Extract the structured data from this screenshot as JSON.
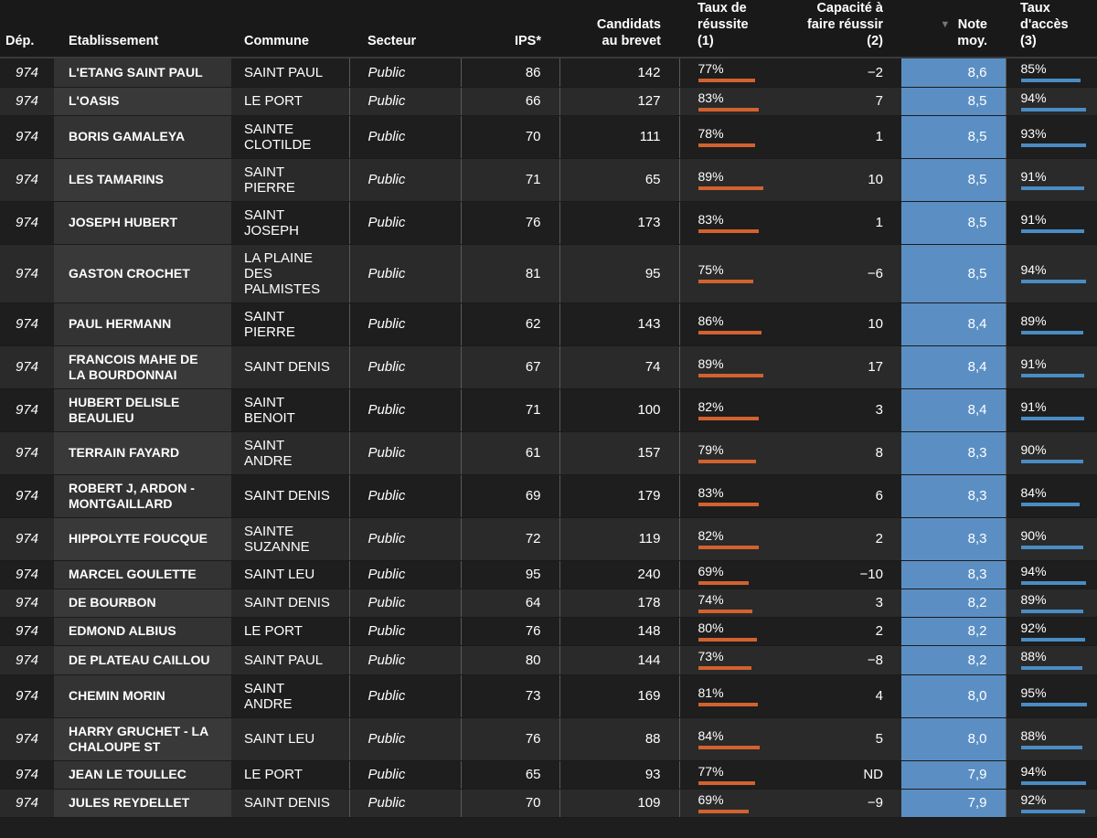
{
  "headers": {
    "dep": "Dép.",
    "etablissement": "Etablissement",
    "commune": "Commune",
    "secteur": "Secteur",
    "ips": "IPS*",
    "candidats_1": "Candidats",
    "candidats_2": "au brevet",
    "taux_1": "Taux de",
    "taux_2": "réussite",
    "taux_3": "(1)",
    "cap_1": "Capacité à",
    "cap_2": "faire réussir",
    "cap_3": "(2)",
    "note_1": "Note",
    "note_2": "moy.",
    "note_sort_icon": "▼",
    "acces_1": "Taux",
    "acces_2": "d'accès",
    "acces_3": "(3)"
  },
  "colors": {
    "success_bar": "#d2622f",
    "access_bar": "#4a8cc4",
    "note_column": "#5b8fc4"
  },
  "rows": [
    {
      "dep": "974",
      "etab": [
        "L'ETANG SAINT PAUL"
      ],
      "commune": [
        "SAINT PAUL"
      ],
      "secteur": "Public",
      "ips": "86",
      "cand": "142",
      "taux": "77%",
      "taux_v": 0.77,
      "cap": "−2",
      "note": "8,6",
      "acces": "85%",
      "acces_v": 0.85
    },
    {
      "dep": "974",
      "etab": [
        "L'OASIS"
      ],
      "commune": [
        "LE PORT"
      ],
      "secteur": "Public",
      "ips": "66",
      "cand": "127",
      "taux": "83%",
      "taux_v": 0.83,
      "cap": "7",
      "note": "8,5",
      "acces": "94%",
      "acces_v": 0.94
    },
    {
      "dep": "974",
      "etab": [
        "BORIS GAMALEYA"
      ],
      "commune": [
        "SAINTE",
        "CLOTILDE"
      ],
      "secteur": "Public",
      "ips": "70",
      "cand": "111",
      "taux": "78%",
      "taux_v": 0.78,
      "cap": "1",
      "note": "8,5",
      "acces": "93%",
      "acces_v": 0.93
    },
    {
      "dep": "974",
      "etab": [
        "LES TAMARINS"
      ],
      "commune": [
        "SAINT",
        "PIERRE"
      ],
      "secteur": "Public",
      "ips": "71",
      "cand": "65",
      "taux": "89%",
      "taux_v": 0.89,
      "cap": "10",
      "note": "8,5",
      "acces": "91%",
      "acces_v": 0.91
    },
    {
      "dep": "974",
      "etab": [
        "JOSEPH HUBERT"
      ],
      "commune": [
        "SAINT",
        "JOSEPH"
      ],
      "secteur": "Public",
      "ips": "76",
      "cand": "173",
      "taux": "83%",
      "taux_v": 0.83,
      "cap": "1",
      "note": "8,5",
      "acces": "91%",
      "acces_v": 0.91
    },
    {
      "dep": "974",
      "etab": [
        "GASTON CROCHET"
      ],
      "commune": [
        "LA PLAINE",
        "DES",
        "PALMISTES"
      ],
      "secteur": "Public",
      "ips": "81",
      "cand": "95",
      "taux": "75%",
      "taux_v": 0.75,
      "cap": "−6",
      "note": "8,5",
      "acces": "94%",
      "acces_v": 0.94
    },
    {
      "dep": "974",
      "etab": [
        "PAUL HERMANN"
      ],
      "commune": [
        "SAINT",
        "PIERRE"
      ],
      "secteur": "Public",
      "ips": "62",
      "cand": "143",
      "taux": "86%",
      "taux_v": 0.86,
      "cap": "10",
      "note": "8,4",
      "acces": "89%",
      "acces_v": 0.89
    },
    {
      "dep": "974",
      "etab": [
        "FRANCOIS MAHE DE",
        "LA BOURDONNAI"
      ],
      "commune": [
        "SAINT DENIS"
      ],
      "secteur": "Public",
      "ips": "67",
      "cand": "74",
      "taux": "89%",
      "taux_v": 0.89,
      "cap": "17",
      "note": "8,4",
      "acces": "91%",
      "acces_v": 0.91
    },
    {
      "dep": "974",
      "etab": [
        "HUBERT DELISLE",
        "BEAULIEU"
      ],
      "commune": [
        "SAINT",
        "BENOIT"
      ],
      "secteur": "Public",
      "ips": "71",
      "cand": "100",
      "taux": "82%",
      "taux_v": 0.82,
      "cap": "3",
      "note": "8,4",
      "acces": "91%",
      "acces_v": 0.91
    },
    {
      "dep": "974",
      "etab": [
        "TERRAIN FAYARD"
      ],
      "commune": [
        "SAINT",
        "ANDRE"
      ],
      "secteur": "Public",
      "ips": "61",
      "cand": "157",
      "taux": "79%",
      "taux_v": 0.79,
      "cap": "8",
      "note": "8,3",
      "acces": "90%",
      "acces_v": 0.9
    },
    {
      "dep": "974",
      "etab": [
        "ROBERT J, ARDON -",
        "MONTGAILLARD"
      ],
      "commune": [
        "SAINT DENIS"
      ],
      "secteur": "Public",
      "ips": "69",
      "cand": "179",
      "taux": "83%",
      "taux_v": 0.83,
      "cap": "6",
      "note": "8,3",
      "acces": "84%",
      "acces_v": 0.84
    },
    {
      "dep": "974",
      "etab": [
        "HIPPOLYTE FOUCQUE"
      ],
      "commune": [
        "SAINTE",
        "SUZANNE"
      ],
      "secteur": "Public",
      "ips": "72",
      "cand": "119",
      "taux": "82%",
      "taux_v": 0.82,
      "cap": "2",
      "note": "8,3",
      "acces": "90%",
      "acces_v": 0.9
    },
    {
      "dep": "974",
      "etab": [
        "MARCEL GOULETTE"
      ],
      "commune": [
        "SAINT LEU"
      ],
      "secteur": "Public",
      "ips": "95",
      "cand": "240",
      "taux": "69%",
      "taux_v": 0.69,
      "cap": "−10",
      "note": "8,3",
      "acces": "94%",
      "acces_v": 0.94
    },
    {
      "dep": "974",
      "etab": [
        "DE BOURBON"
      ],
      "commune": [
        "SAINT DENIS"
      ],
      "secteur": "Public",
      "ips": "64",
      "cand": "178",
      "taux": "74%",
      "taux_v": 0.74,
      "cap": "3",
      "note": "8,2",
      "acces": "89%",
      "acces_v": 0.89
    },
    {
      "dep": "974",
      "etab": [
        "EDMOND ALBIUS"
      ],
      "commune": [
        "LE PORT"
      ],
      "secteur": "Public",
      "ips": "76",
      "cand": "148",
      "taux": "80%",
      "taux_v": 0.8,
      "cap": "2",
      "note": "8,2",
      "acces": "92%",
      "acces_v": 0.92
    },
    {
      "dep": "974",
      "etab": [
        "DE PLATEAU CAILLOU"
      ],
      "commune": [
        "SAINT PAUL"
      ],
      "secteur": "Public",
      "ips": "80",
      "cand": "144",
      "taux": "73%",
      "taux_v": 0.73,
      "cap": "−8",
      "note": "8,2",
      "acces": "88%",
      "acces_v": 0.88
    },
    {
      "dep": "974",
      "etab": [
        "CHEMIN MORIN"
      ],
      "commune": [
        "SAINT",
        "ANDRE"
      ],
      "secteur": "Public",
      "ips": "73",
      "cand": "169",
      "taux": "81%",
      "taux_v": 0.81,
      "cap": "4",
      "note": "8,0",
      "acces": "95%",
      "acces_v": 0.95
    },
    {
      "dep": "974",
      "etab": [
        "HARRY GRUCHET - LA",
        "CHALOUPE ST"
      ],
      "commune": [
        "SAINT LEU"
      ],
      "secteur": "Public",
      "ips": "76",
      "cand": "88",
      "taux": "84%",
      "taux_v": 0.84,
      "cap": "5",
      "note": "8,0",
      "acces": "88%",
      "acces_v": 0.88
    },
    {
      "dep": "974",
      "etab": [
        "JEAN LE TOULLEC"
      ],
      "commune": [
        "LE PORT"
      ],
      "secteur": "Public",
      "ips": "65",
      "cand": "93",
      "taux": "77%",
      "taux_v": 0.77,
      "cap": "ND",
      "note": "7,9",
      "acces": "94%",
      "acces_v": 0.94
    },
    {
      "dep": "974",
      "etab": [
        "JULES REYDELLET"
      ],
      "commune": [
        "SAINT DENIS"
      ],
      "secteur": "Public",
      "ips": "70",
      "cand": "109",
      "taux": "69%",
      "taux_v": 0.69,
      "cap": "−9",
      "note": "7,9",
      "acces": "92%",
      "acces_v": 0.92
    }
  ]
}
